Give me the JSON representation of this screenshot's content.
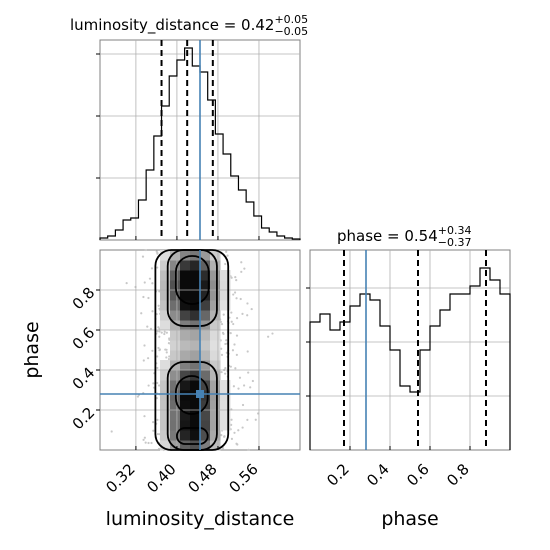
{
  "chart_data": [
    {
      "panel": "luminosity_distance-marginal",
      "type": "histogram",
      "title": {
        "main": "luminosity_distance = 0.42",
        "sup": "+0.05",
        "sub": "−0.05"
      },
      "xlim": [
        0.25,
        0.64
      ],
      "ylim": [
        0,
        1.0
      ],
      "y_ticklabels_shown": false,
      "grid": true,
      "bins": [
        0.25,
        0.265,
        0.28,
        0.295,
        0.31,
        0.325,
        0.34,
        0.355,
        0.37,
        0.385,
        0.4,
        0.415,
        0.43,
        0.445,
        0.46,
        0.475,
        0.49,
        0.505,
        0.52,
        0.535,
        0.55,
        0.565,
        0.58,
        0.595,
        0.61,
        0.625,
        0.64
      ],
      "values": [
        0.01,
        0.02,
        0.05,
        0.1,
        0.11,
        0.2,
        0.35,
        0.52,
        0.67,
        0.82,
        0.9,
        0.96,
        0.87,
        0.84,
        0.7,
        0.53,
        0.43,
        0.32,
        0.25,
        0.19,
        0.12,
        0.06,
        0.04,
        0.02,
        0.01,
        0.005
      ],
      "quantiles": [
        0.37,
        0.42,
        0.47
      ],
      "truth": 0.445,
      "color": "#000000",
      "truth_color": "#4682b4"
    },
    {
      "panel": "phase-marginal",
      "type": "histogram",
      "title": {
        "main": "phase = 0.54",
        "sup": "+0.34",
        "sub": "−0.37"
      },
      "xlim": [
        0.0,
        1.0
      ],
      "ylim": [
        0,
        1.0
      ],
      "y_ticklabels_shown": false,
      "grid": true,
      "bins": [
        0.0,
        0.05,
        0.1,
        0.15,
        0.2,
        0.25,
        0.3,
        0.35,
        0.4,
        0.45,
        0.5,
        0.55,
        0.6,
        0.65,
        0.7,
        0.75,
        0.8,
        0.85,
        0.9,
        0.95,
        1.0
      ],
      "values": [
        0.64,
        0.68,
        0.6,
        0.64,
        0.72,
        0.78,
        0.75,
        0.62,
        0.5,
        0.32,
        0.29,
        0.5,
        0.62,
        0.7,
        0.78,
        0.78,
        0.82,
        0.91,
        0.85,
        0.78
      ],
      "quantiles": [
        0.17,
        0.54,
        0.88
      ],
      "truth": 0.28,
      "color": "#000000",
      "truth_color": "#4682b4"
    },
    {
      "panel": "luminosity_distance-vs-phase",
      "type": "heatmap",
      "xlabel": "luminosity_distance",
      "ylabel": "phase",
      "xlim": [
        0.25,
        0.64
      ],
      "ylim": [
        0.0,
        1.0
      ],
      "xticks": [
        {
          "value": 0.32,
          "label": "0.32"
        },
        {
          "value": 0.4,
          "label": "0.40"
        },
        {
          "value": 0.48,
          "label": "0.48"
        },
        {
          "value": 0.56,
          "label": "0.56"
        }
      ],
      "yticks": [
        {
          "value": 0.2,
          "label": "0.2"
        },
        {
          "value": 0.4,
          "label": "0.4"
        },
        {
          "value": 0.6,
          "label": "0.6"
        },
        {
          "value": 0.8,
          "label": "0.8"
        }
      ],
      "grid": true,
      "truth": {
        "x": 0.445,
        "y": 0.28
      },
      "density_blobs": [
        {
          "cx": 0.43,
          "cy": 0.85,
          "sx": 0.03,
          "sy": 0.09,
          "w": 1.0
        },
        {
          "cx": 0.43,
          "cy": 0.7,
          "sx": 0.03,
          "sy": 0.08,
          "w": 0.55
        },
        {
          "cx": 0.43,
          "cy": 0.28,
          "sx": 0.03,
          "sy": 0.11,
          "w": 0.95
        },
        {
          "cx": 0.43,
          "cy": 0.08,
          "sx": 0.03,
          "sy": 0.07,
          "w": 0.65
        }
      ],
      "contours": [
        {
          "level": "inner",
          "regions": [
            {
              "x": [
                0.398,
                0.462
              ],
              "y": [
                0.73,
                0.97
              ]
            },
            {
              "x": [
                0.398,
                0.46
              ],
              "y": [
                0.18,
                0.37
              ]
            },
            {
              "x": [
                0.4,
                0.46
              ],
              "y": [
                0.03,
                0.11
              ]
            }
          ]
        },
        {
          "level": "middle",
          "regions": [
            {
              "x": [
                0.382,
                0.478
              ],
              "y": [
                0.62,
                1.0
              ]
            },
            {
              "x": [
                0.382,
                0.478
              ],
              "y": [
                0.0,
                0.44
              ]
            }
          ]
        },
        {
          "level": "outer",
          "regions": [
            {
              "x": [
                0.358,
                0.5
              ],
              "y": [
                0.0,
                1.0
              ]
            }
          ]
        }
      ]
    }
  ]
}
